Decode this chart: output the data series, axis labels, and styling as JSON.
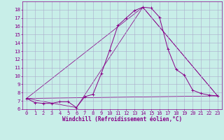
{
  "xlabel": "Windchill (Refroidissement éolien,°C)",
  "background_color": "#c8eee8",
  "grid_color": "#aaaacc",
  "line_color": "#880088",
  "xlim": [
    -0.5,
    23.5
  ],
  "ylim": [
    6.0,
    19.0
  ],
  "xticks": [
    0,
    1,
    2,
    3,
    4,
    5,
    6,
    7,
    8,
    9,
    10,
    11,
    12,
    13,
    14,
    15,
    16,
    17,
    18,
    19,
    20,
    21,
    22,
    23
  ],
  "yticks": [
    6,
    7,
    8,
    9,
    10,
    11,
    12,
    13,
    14,
    15,
    16,
    17,
    18
  ],
  "line1_x": [
    0,
    1,
    2,
    3,
    4,
    5,
    6,
    7,
    8,
    9,
    10,
    11,
    12,
    13,
    14,
    15,
    16,
    17,
    18,
    19,
    20,
    21,
    22,
    23
  ],
  "line1_y": [
    7.3,
    6.8,
    6.7,
    6.7,
    6.9,
    6.9,
    6.2,
    7.5,
    7.8,
    10.3,
    13.1,
    16.1,
    17.0,
    17.9,
    18.3,
    18.2,
    17.1,
    13.3,
    10.8,
    10.1,
    8.3,
    7.9,
    7.7,
    7.6
  ],
  "line2_x": [
    0,
    6,
    14,
    23
  ],
  "line2_y": [
    7.3,
    6.2,
    18.3,
    7.6
  ],
  "line3_x": [
    0,
    23
  ],
  "line3_y": [
    7.3,
    7.6
  ],
  "line4_x": [
    0,
    14,
    23
  ],
  "line4_y": [
    7.3,
    18.3,
    7.6
  ],
  "tick_fontsize": 5.0,
  "xlabel_fontsize": 5.5,
  "linewidth_main": 0.7,
  "linewidth_secondary": 0.55,
  "marker_size": 2.5
}
